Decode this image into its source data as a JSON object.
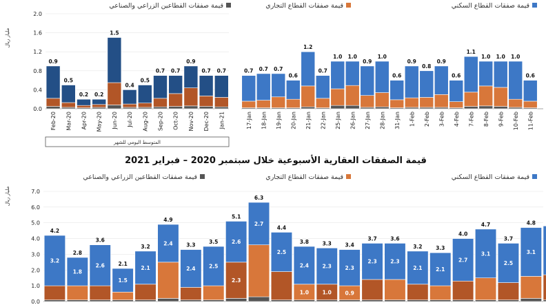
{
  "title": "قيمة الصفقات العقارية الأسبوعية خلال سبتمبر 2020 – فبراير 2021",
  "unit_label": "مليار ريال",
  "note_label": "المتوسط اليومي للشهر",
  "legend": {
    "residential": "قيمة صفقات القطاع السكني",
    "commercial": "قيمة صفقات القطاع التجاري",
    "agri_industrial": "قيمة صفقات القطاعين الزراعي والصناعي"
  },
  "colors": {
    "residential_dark": "#234f86",
    "residential_light": "#3d78c6",
    "commercial_dark": "#b25627",
    "commercial_light": "#d8773a",
    "agri": "#555555"
  },
  "chart_data": [
    {
      "id": "monthly",
      "type": "bar",
      "stacked": true,
      "ylim": [
        0,
        2.0
      ],
      "yticks": [
        "0.0",
        "0.4",
        "0.8",
        "1.2",
        "1.6",
        "2.0"
      ],
      "categories": [
        "Feb-20",
        "Mar-20",
        "Apr-20",
        "May-20",
        "Jun-20",
        "Jul-20",
        "Aug-20",
        "Sep-20",
        "Oct-20",
        "Nov-20",
        "Dec-20",
        "Jan-21"
      ],
      "series": [
        {
          "name": "قيمة صفقات القطاعين الزراعي والصناعي",
          "values": [
            0.05,
            0.03,
            0.02,
            0.03,
            0.08,
            0.03,
            0.03,
            0.04,
            0.05,
            0.06,
            0.05,
            0.04
          ]
        },
        {
          "name": "قيمة صفقات القطاع التجاري",
          "values": [
            0.17,
            0.1,
            0.05,
            0.06,
            0.47,
            0.07,
            0.09,
            0.18,
            0.27,
            0.38,
            0.22,
            0.2
          ]
        },
        {
          "name": "قيمة صفقات القطاع السكني",
          "values": [
            0.68,
            0.37,
            0.13,
            0.11,
            0.95,
            0.3,
            0.38,
            0.48,
            0.38,
            0.46,
            0.43,
            0.46
          ]
        }
      ],
      "totals": [
        "0.9",
        "0.5",
        "0.2",
        "0.2",
        "1.5",
        "0.4",
        "0.5",
        "0.7",
        "0.7",
        "0.9",
        "0.7",
        "0.7"
      ]
    },
    {
      "id": "daily",
      "type": "bar",
      "stacked": true,
      "ylim": [
        0,
        2.0
      ],
      "categories": [
        "17-Jan",
        "18-Jan",
        "19-Jan",
        "20-Jan",
        "21-Jan",
        "22-Jan",
        "25-Jan",
        "26-Jan",
        "27-Jan",
        "28-Jan",
        "31-Jan",
        "1-Feb",
        "2-Feb",
        "3-Feb",
        "4-Feb",
        "7-Feb",
        "8-Feb",
        "9-Feb",
        "10-Feb",
        "11-Feb"
      ],
      "series": [
        {
          "name": "قيمة صفقات القطاعين الزراعي والصناعي",
          "values": [
            0.02,
            0.02,
            0.02,
            0.02,
            0.04,
            0.02,
            0.07,
            0.07,
            0.03,
            0.04,
            0.02,
            0.03,
            0.03,
            0.03,
            0.02,
            0.05,
            0.06,
            0.05,
            0.03,
            0.02
          ]
        },
        {
          "name": "قيمة صفقات القطاع التجاري",
          "values": [
            0.14,
            0.16,
            0.23,
            0.18,
            0.44,
            0.2,
            0.35,
            0.42,
            0.25,
            0.3,
            0.17,
            0.2,
            0.21,
            0.27,
            0.13,
            0.3,
            0.42,
            0.4,
            0.17,
            0.14
          ]
        },
        {
          "name": "قيمة صفقات القطاع السكني",
          "values": [
            0.54,
            0.56,
            0.49,
            0.4,
            0.72,
            0.48,
            0.58,
            0.51,
            0.62,
            0.66,
            0.41,
            0.67,
            0.56,
            0.6,
            0.45,
            0.75,
            0.52,
            0.55,
            0.8,
            0.44
          ]
        }
      ],
      "totals": [
        "0.7",
        "0.7",
        "0.7",
        "0.6",
        "1.2",
        "0.7",
        "1.0",
        "1.0",
        "0.9",
        "1.0",
        "0.6",
        "0.9",
        "0.8",
        "0.9",
        "0.6",
        "1.1",
        "1.0",
        "1.0",
        "1.0",
        "0.6"
      ]
    },
    {
      "id": "weekly",
      "type": "bar",
      "stacked": true,
      "title": "قيمة الصفقات العقارية الأسبوعية خلال سبتمبر 2020 – فبراير 2021",
      "ylim": [
        0,
        7.0
      ],
      "yticks": [
        "0.0",
        "1.0",
        "2.0",
        "3.0",
        "4.0",
        "5.0",
        "6.0",
        "7.0"
      ],
      "series": [
        {
          "name": "قيمة صفقات القطاعين الزراعي والصناعي",
          "values": [
            0.1,
            0.1,
            0.1,
            0.1,
            0.1,
            0.2,
            0.1,
            0.1,
            0.2,
            0.3,
            0.1,
            0.1,
            0.1,
            0.1,
            0.1,
            0.1,
            0.1,
            0.1,
            0.1,
            0.1,
            0.1,
            0.2,
            0.1
          ]
        },
        {
          "name": "قيمة صفقات القطاع التجاري",
          "values": [
            0.9,
            0.9,
            0.9,
            0.5,
            1.0,
            2.3,
            0.8,
            0.9,
            2.3,
            3.3,
            1.8,
            1.0,
            1.0,
            0.9,
            1.3,
            1.3,
            1.0,
            0.9,
            1.2,
            1.4,
            1.1,
            1.4,
            1.6
          ]
        },
        {
          "name": "قيمة صفقات القطاع السكني",
          "values": [
            3.2,
            1.8,
            2.6,
            1.5,
            2.1,
            2.4,
            2.4,
            2.5,
            2.6,
            2.7,
            2.5,
            2.4,
            2.3,
            2.3,
            2.3,
            2.3,
            2.1,
            2.1,
            2.7,
            3.1,
            2.5,
            3.1,
            3.1
          ]
        }
      ],
      "totals": [
        "4.2",
        "2.8",
        "3.6",
        "2.1",
        "3.2",
        "4.9",
        "3.3",
        "3.5",
        "5.1",
        "6.3",
        "4.4",
        "3.8",
        "3.3",
        "3.4",
        "3.7",
        "3.6",
        "3.2",
        "3.3",
        "4.0",
        "4.7",
        "3.7",
        "4.8",
        ""
      ],
      "residential_labels": [
        "3.2",
        "1.8",
        "2.6",
        "1.5",
        "2.1",
        "2.4",
        "2.4",
        "2.5",
        "2.6",
        "2.7",
        "2.5",
        "2.4",
        "2.3",
        "2.3",
        "2.3",
        "2.3",
        "2.1",
        "2.1",
        "2.7",
        "3.1",
        "2.5",
        "3.1",
        ""
      ],
      "commercial_labels": [
        "",
        "",
        "",
        "",
        "",
        "",
        "",
        "",
        "2.3",
        "",
        "",
        "1.0",
        "1.0",
        "0.9",
        "",
        "",
        "",
        "",
        "",
        "",
        "",
        "",
        ""
      ]
    }
  ]
}
